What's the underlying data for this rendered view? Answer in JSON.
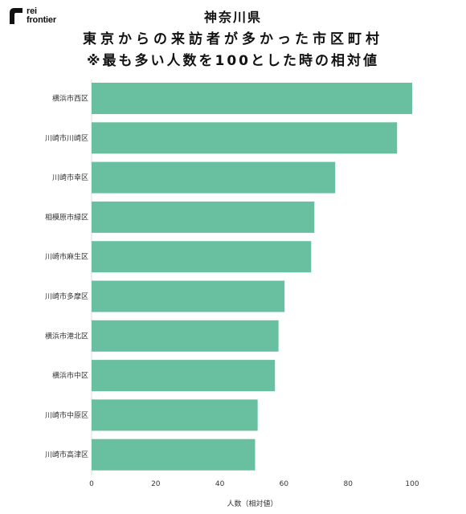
{
  "logo": {
    "line1": "rei",
    "line2": "frontier"
  },
  "header": {
    "line1": "神奈川県",
    "line2": "東京からの来訪者が多かった市区町村",
    "line3": "※最も多い人数を100とした時の相対値"
  },
  "chart_data": {
    "type": "bar",
    "orientation": "horizontal",
    "categories": [
      "横浜市西区",
      "川崎市川崎区",
      "川崎市幸区",
      "相模原市緑区",
      "川崎市麻生区",
      "川崎市多摩区",
      "横浜市港北区",
      "横浜市中区",
      "川崎市中原区",
      "川崎市高津区"
    ],
    "values": [
      100,
      95.3,
      76,
      69.5,
      68.5,
      60.2,
      58.3,
      57.2,
      51.8,
      51
    ],
    "xlabel": "人数（相対値）",
    "xlim": [
      0,
      100
    ],
    "xticks": [
      "0",
      "20",
      "40",
      "60",
      "80",
      "100"
    ],
    "bar_color": "#69c0a1",
    "grid": false,
    "legend": "none"
  }
}
